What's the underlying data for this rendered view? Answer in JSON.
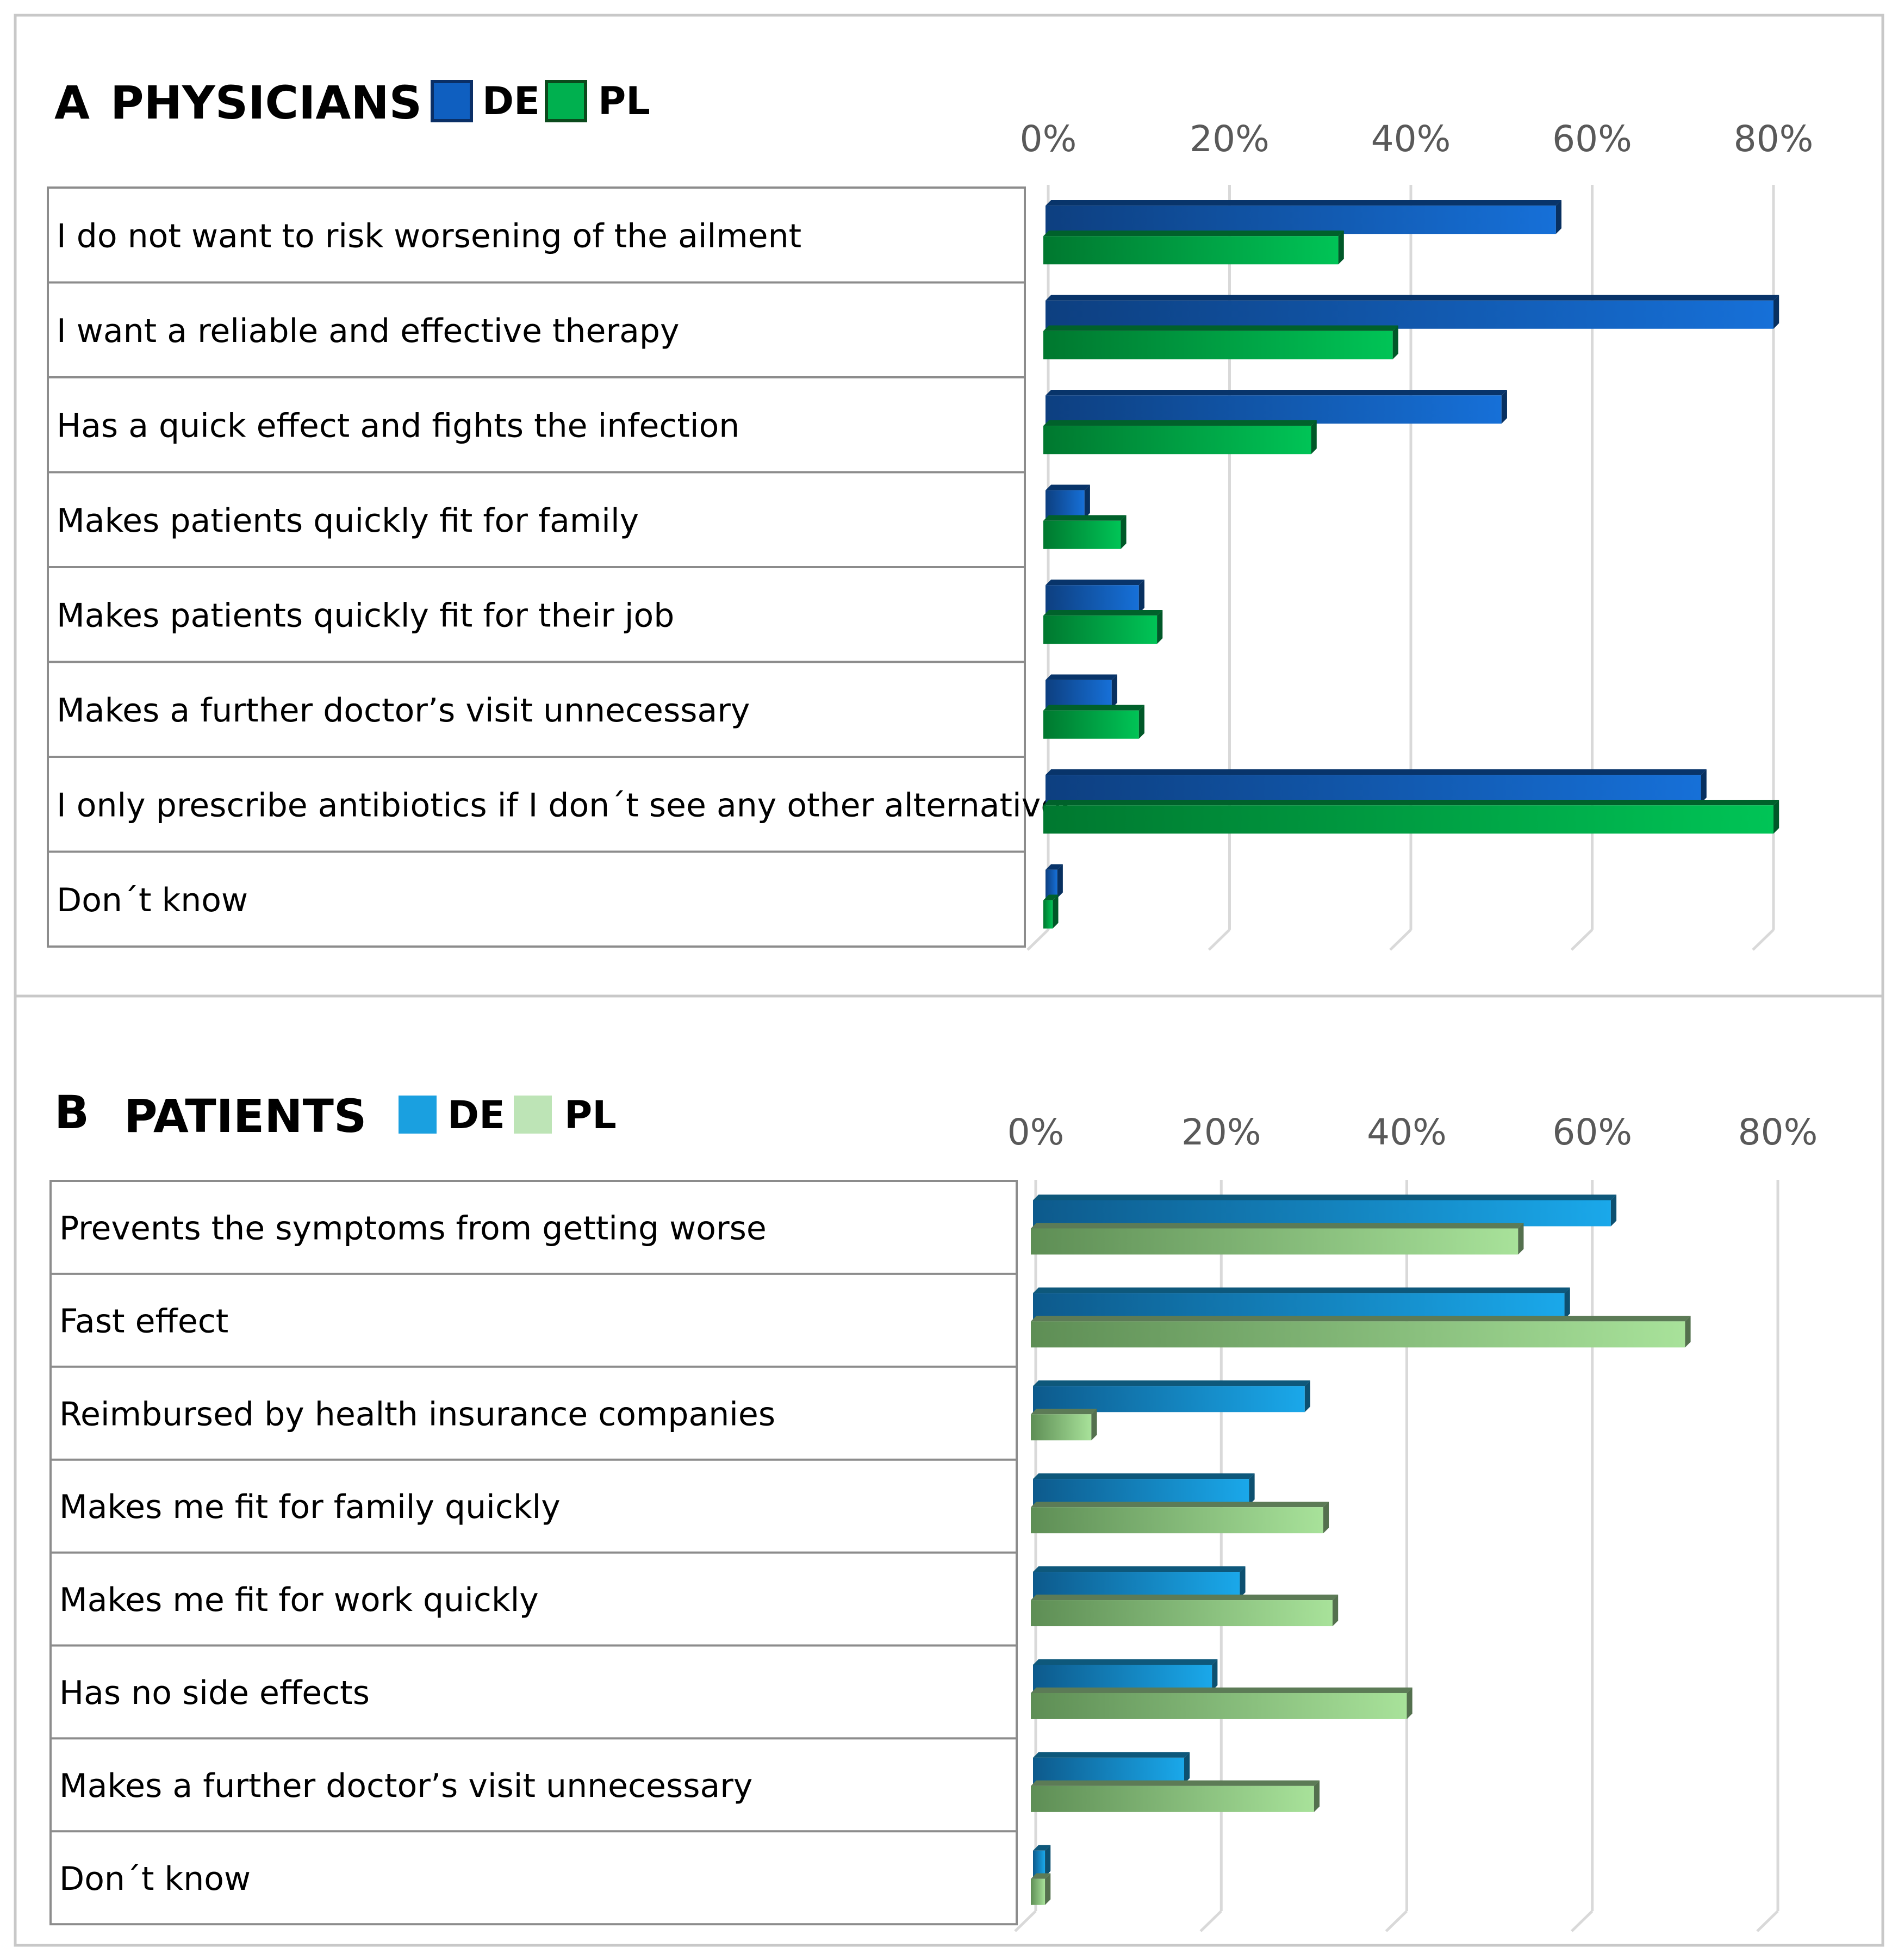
{
  "chart_data": [
    {
      "type": "bar",
      "orientation": "horizontal",
      "panel": "A",
      "title": "PHYSICIANS",
      "categories": [
        "I do not want to risk worsening of the ailment",
        "I want a reliable and effective therapy",
        "Has a quick effect and fights the infection",
        "Makes patients quickly fit for family",
        "Makes patients quickly fit for their job",
        "Makes a further doctor’s visit unnecessary",
        "I only prescribe antibiotics if I don´t see any other alternatives",
        "Don´t know"
      ],
      "series": [
        {
          "name": "DE",
          "color": "#0f5fc0",
          "values": [
            56,
            80,
            50,
            4,
            10,
            7,
            72,
            1
          ]
        },
        {
          "name": "PL",
          "color": "#00b04f",
          "values": [
            32,
            38,
            29,
            8,
            12,
            10,
            80,
            0.5
          ]
        }
      ],
      "xlim": [
        0,
        80
      ],
      "xticks": [
        "0%",
        "20%",
        "40%",
        "60%",
        "80%"
      ],
      "legend_position": "top",
      "grid": true
    },
    {
      "type": "bar",
      "orientation": "horizontal",
      "panel": "B",
      "title": "PATIENTS",
      "categories": [
        "Prevents the symptoms from getting worse",
        "Fast effect",
        "Reimbursed by health insurance companies",
        "Makes me fit for family quickly",
        "Makes me fit for work quickly",
        "Has no side effects",
        "Makes a further doctor’s visit unnecessary",
        "Don´t know"
      ],
      "series": [
        {
          "name": "DE",
          "color": "#1aa0e0",
          "values": [
            62,
            57,
            29,
            23,
            22,
            19,
            16,
            1
          ]
        },
        {
          "name": "PL",
          "color": "#a8df9c",
          "values": [
            52,
            70,
            6,
            31,
            32,
            40,
            30,
            1
          ]
        }
      ],
      "xlim": [
        0,
        80
      ],
      "xticks": [
        "0%",
        "20%",
        "40%",
        "60%",
        "80%"
      ],
      "legend_position": "top",
      "grid": true
    }
  ]
}
